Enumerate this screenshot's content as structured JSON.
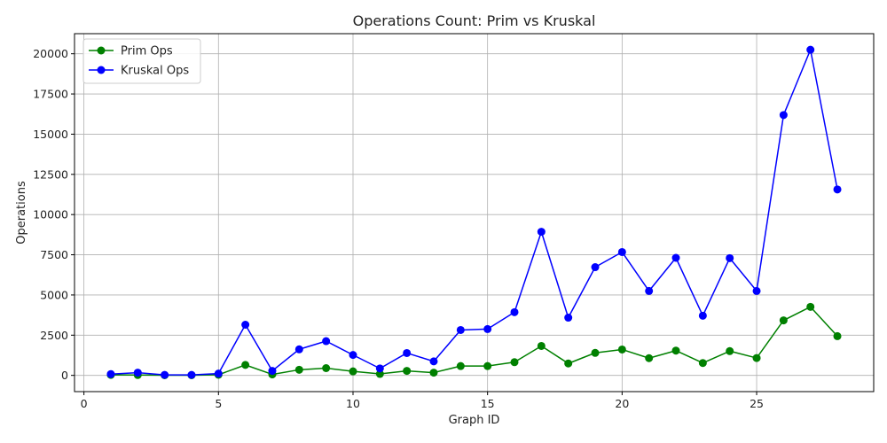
{
  "chart_data": {
    "type": "line",
    "title": "Operations Count: Prim vs Kruskal",
    "xlabel": "Graph ID",
    "ylabel": "Operations",
    "xlim": [
      -0.35,
      29.35
    ],
    "ylim": [
      -1010,
      21250
    ],
    "xticks": [
      0,
      5,
      10,
      15,
      20,
      25
    ],
    "yticks": [
      0,
      2500,
      5000,
      7500,
      10000,
      12500,
      15000,
      17500,
      20000
    ],
    "grid": true,
    "legend_position": "top-left",
    "x": [
      1,
      2,
      3,
      4,
      5,
      6,
      7,
      8,
      9,
      10,
      11,
      12,
      13,
      14,
      15,
      16,
      17,
      18,
      19,
      20,
      21,
      22,
      23,
      24,
      25,
      26,
      27,
      28
    ],
    "series": [
      {
        "name": "Prim Ops",
        "color": "#008000",
        "marker": "circle",
        "values": [
          30,
          20,
          10,
          10,
          40,
          650,
          60,
          350,
          450,
          250,
          90,
          280,
          170,
          580,
          580,
          820,
          1830,
          740,
          1400,
          1610,
          1070,
          1540,
          770,
          1510,
          1080,
          3420,
          4260,
          2440
        ]
      },
      {
        "name": "Kruskal Ops",
        "color": "#0000ff",
        "marker": "circle",
        "values": [
          80,
          170,
          30,
          30,
          110,
          3150,
          280,
          1620,
          2130,
          1270,
          430,
          1390,
          870,
          2820,
          2880,
          3930,
          8930,
          3590,
          6730,
          7670,
          5250,
          7310,
          3710,
          7290,
          5250,
          16190,
          20250,
          11560
        ]
      }
    ]
  }
}
